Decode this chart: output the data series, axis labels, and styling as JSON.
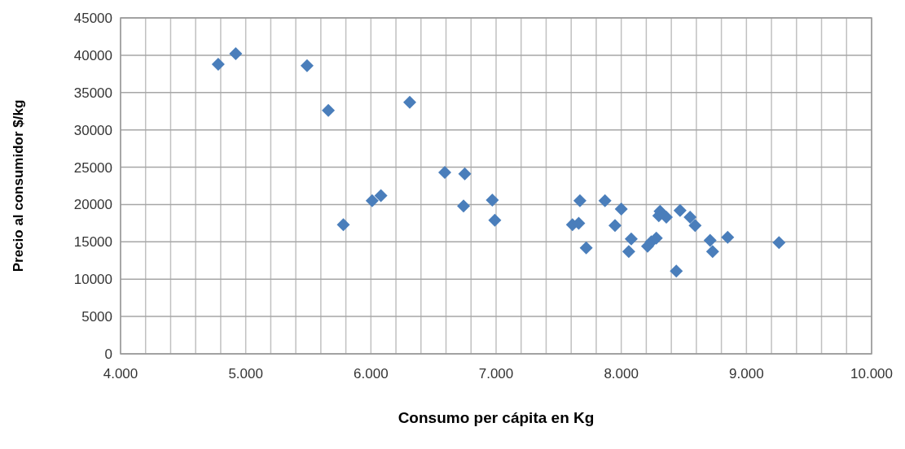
{
  "chart_data": {
    "type": "scatter",
    "xlabel": "Consumo per cápita en Kg",
    "ylabel": "Precio al consumidor $/kg",
    "x": [
      4780,
      4920,
      5490,
      5660,
      6310,
      6590,
      6750,
      6010,
      6080,
      5780,
      6740,
      6970,
      6990,
      7610,
      7660,
      7670,
      7720,
      7870,
      8000,
      7950,
      8080,
      8060,
      8210,
      8240,
      8280,
      8310,
      8300,
      8360,
      8470,
      8550,
      8590,
      8440,
      8710,
      8730,
      8850,
      9260
    ],
    "series": [
      {
        "color": "#4a7ebb",
        "values": [
          38800,
          40200,
          38600,
          32600,
          33700,
          24300,
          24100,
          20500,
          21200,
          17300,
          19800,
          20600,
          17900,
          17300,
          17500,
          20500,
          14200,
          20500,
          19400,
          17200,
          15400,
          13700,
          14400,
          15000,
          15500,
          19100,
          18500,
          18300,
          19200,
          18300,
          17200,
          11100,
          15200,
          13700,
          15600,
          14900
        ]
      }
    ],
    "xlim": [
      4000,
      10000
    ],
    "ylim": [
      0,
      45000
    ],
    "xticks": [
      {
        "value": 4000,
        "label": "4.000"
      },
      {
        "value": 4200,
        "label": null
      },
      {
        "value": 4400,
        "label": null
      },
      {
        "value": 4600,
        "label": null
      },
      {
        "value": 4800,
        "label": null
      },
      {
        "value": 5000,
        "label": "5.000"
      },
      {
        "value": 5200,
        "label": null
      },
      {
        "value": 5400,
        "label": null
      },
      {
        "value": 5600,
        "label": null
      },
      {
        "value": 5800,
        "label": null
      },
      {
        "value": 6000,
        "label": "6.000"
      },
      {
        "value": 6200,
        "label": null
      },
      {
        "value": 6400,
        "label": null
      },
      {
        "value": 6600,
        "label": null
      },
      {
        "value": 6800,
        "label": null
      },
      {
        "value": 7000,
        "label": "7.000"
      },
      {
        "value": 7200,
        "label": null
      },
      {
        "value": 7400,
        "label": null
      },
      {
        "value": 7600,
        "label": null
      },
      {
        "value": 7800,
        "label": null
      },
      {
        "value": 8000,
        "label": "8.000"
      },
      {
        "value": 8200,
        "label": null
      },
      {
        "value": 8400,
        "label": null
      },
      {
        "value": 8600,
        "label": null
      },
      {
        "value": 8800,
        "label": null
      },
      {
        "value": 9000,
        "label": "9.000"
      },
      {
        "value": 9200,
        "label": null
      },
      {
        "value": 9400,
        "label": null
      },
      {
        "value": 9600,
        "label": null
      },
      {
        "value": 9800,
        "label": null
      },
      {
        "value": 10000,
        "label": "10.000"
      }
    ],
    "yticks": [
      0,
      5000,
      10000,
      15000,
      20000,
      25000,
      30000,
      35000,
      40000,
      45000
    ],
    "grid": true,
    "marker": "diamond"
  }
}
